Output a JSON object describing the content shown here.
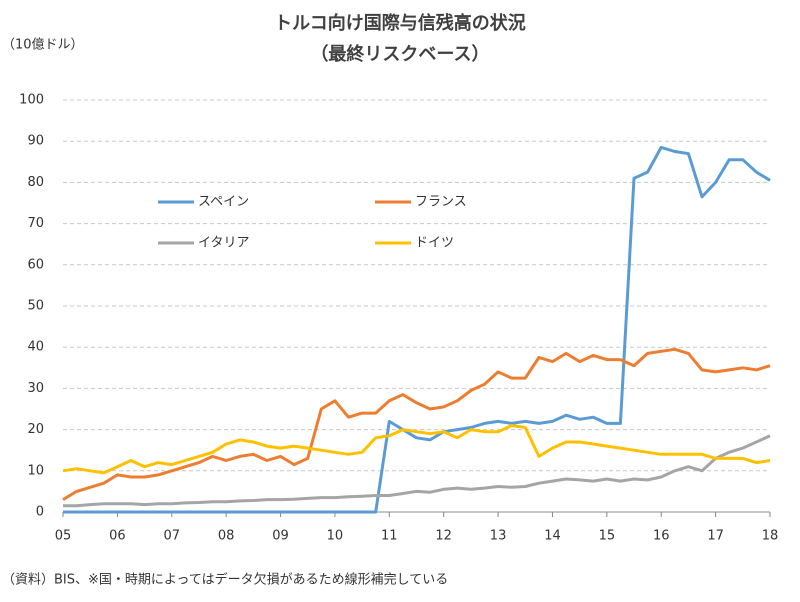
{
  "chart_data": {
    "type": "line",
    "title": "トルコ向け国際与信残高の状況",
    "subtitle": "（最終リスクベース）",
    "y_label": "（10億ドル）",
    "note": "（資料）BIS、※国・時期によってはデータ欠損があるため線形補完している",
    "categories": [
      "05",
      null,
      null,
      null,
      "06",
      null,
      null,
      null,
      "07",
      null,
      null,
      null,
      "08",
      null,
      null,
      null,
      "09",
      null,
      null,
      null,
      "10",
      null,
      null,
      null,
      "11",
      null,
      null,
      null,
      "12",
      null,
      null,
      null,
      "13",
      null,
      null,
      null,
      "14",
      null,
      null,
      null,
      "15",
      null,
      null,
      null,
      "16",
      null,
      null,
      null,
      "17",
      null,
      null,
      null,
      "18"
    ],
    "series": [
      {
        "name": "スペイン",
        "color": "#5b9bd5",
        "values": [
          0,
          0,
          0,
          0,
          0,
          0,
          0,
          0,
          0,
          0,
          0,
          0,
          0,
          0,
          0,
          0,
          0,
          0,
          0,
          0,
          0,
          0,
          0,
          0,
          22,
          20,
          18,
          17.5,
          19.5,
          20,
          20.5,
          21.5,
          22,
          21.5,
          22,
          21.5,
          22,
          23.5,
          22.5,
          23,
          21.5,
          21.5,
          81,
          82.5,
          88.5,
          87.5,
          87,
          76.5,
          80,
          85.5,
          85.5,
          82.5,
          80.5
        ]
      },
      {
        "name": "フランス",
        "color": "#ed7d31",
        "values": [
          3,
          5,
          6,
          7,
          9,
          8.5,
          8.5,
          9,
          10,
          11,
          12,
          13.5,
          12.5,
          13.5,
          14,
          12.5,
          13.5,
          11.5,
          13,
          25,
          27,
          23,
          24,
          24,
          27,
          28.5,
          26.5,
          25,
          25.5,
          27,
          29.5,
          31,
          34,
          32.5,
          32.5,
          37.5,
          36.5,
          38.5,
          36.5,
          38,
          37,
          37,
          35.5,
          38.5,
          39,
          39.5,
          38.5,
          34.5,
          34,
          34.5,
          35,
          34.5,
          35.5
        ]
      },
      {
        "name": "イタリア",
        "color": "#a5a5a5",
        "values": [
          1.5,
          1.5,
          1.8,
          2,
          2,
          2,
          1.8,
          2,
          2,
          2.2,
          2.3,
          2.5,
          2.5,
          2.7,
          2.8,
          3,
          3,
          3.1,
          3.3,
          3.5,
          3.5,
          3.7,
          3.8,
          4,
          4,
          4.5,
          5,
          4.8,
          5.5,
          5.8,
          5.5,
          5.8,
          6.2,
          6,
          6.2,
          7,
          7.5,
          8,
          7.8,
          7.5,
          8,
          7.5,
          8,
          7.8,
          8.5,
          10,
          11,
          10,
          13,
          14.5,
          15.5,
          17,
          18.5
        ]
      },
      {
        "name": "ドイツ",
        "color": "#ffc000",
        "values": [
          10,
          10.5,
          10,
          9.5,
          11,
          12.5,
          11,
          12,
          11.5,
          12.5,
          13.5,
          14.5,
          16.5,
          17.5,
          17,
          16,
          15.5,
          16,
          15.5,
          15,
          14.5,
          14,
          14.5,
          18,
          18.5,
          20,
          19.5,
          19,
          19.5,
          18,
          20,
          19.5,
          19.5,
          21,
          20.5,
          13.5,
          15.5,
          17,
          17,
          16.5,
          16,
          15.5,
          15,
          14.5,
          14,
          14,
          14,
          14,
          13,
          13,
          13,
          12,
          12.5
        ]
      }
    ],
    "ylim": [
      0,
      100
    ],
    "yticks": [
      0,
      10,
      20,
      30,
      40,
      50,
      60,
      70,
      80,
      90,
      100
    ],
    "grid": true,
    "legend": "upper left"
  }
}
